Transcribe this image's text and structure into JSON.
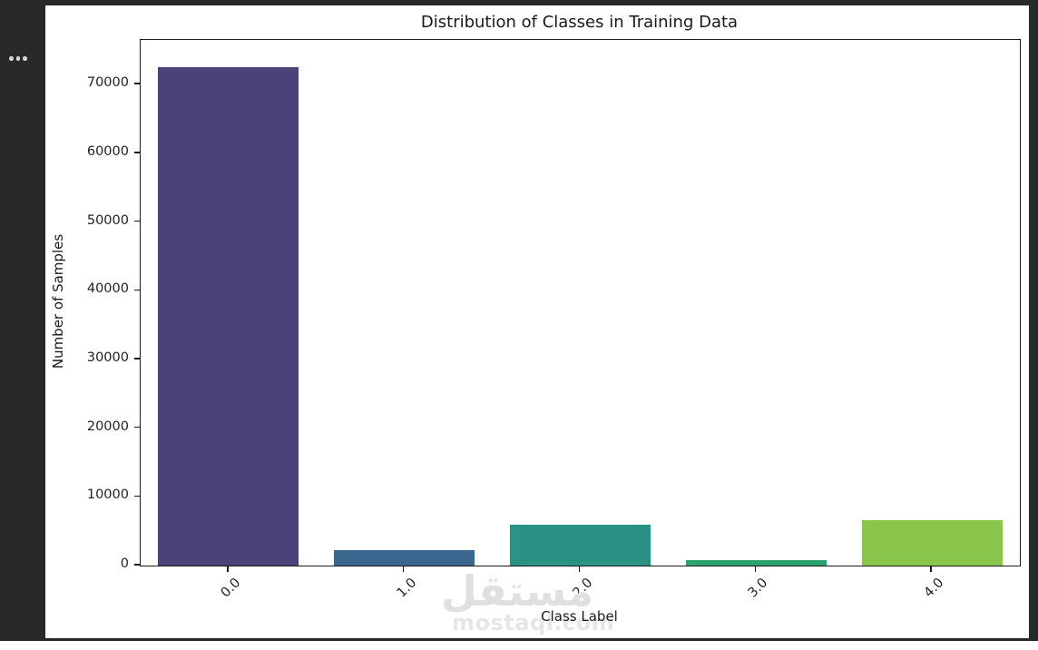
{
  "app": {
    "background_color": "#28292b",
    "menu_icon": "horizontal-ellipsis-icon"
  },
  "chart_data": {
    "type": "bar",
    "title": "Distribution of Classes in Training Data",
    "xlabel": "Class Label",
    "ylabel": "Number of Samples",
    "categories": [
      "0.0",
      "1.0",
      "2.0",
      "3.0",
      "4.0"
    ],
    "values": [
      72500,
      2200,
      5900,
      800,
      6600
    ],
    "bar_colors": [
      "#4a4379",
      "#39678d",
      "#2a9184",
      "#2fa070",
      "#8ac64b"
    ],
    "yticks": [
      0,
      10000,
      20000,
      30000,
      40000,
      50000,
      60000,
      70000
    ],
    "ylim": [
      0,
      76500
    ],
    "x_tick_rotation": 45,
    "grid": false,
    "legend": null,
    "figure_background": "#ffffff",
    "text_color": "#1a1a1a"
  },
  "watermark": {
    "arabic": "مستقل",
    "latin": "mostaql.com",
    "color": "#e2e2e2"
  }
}
